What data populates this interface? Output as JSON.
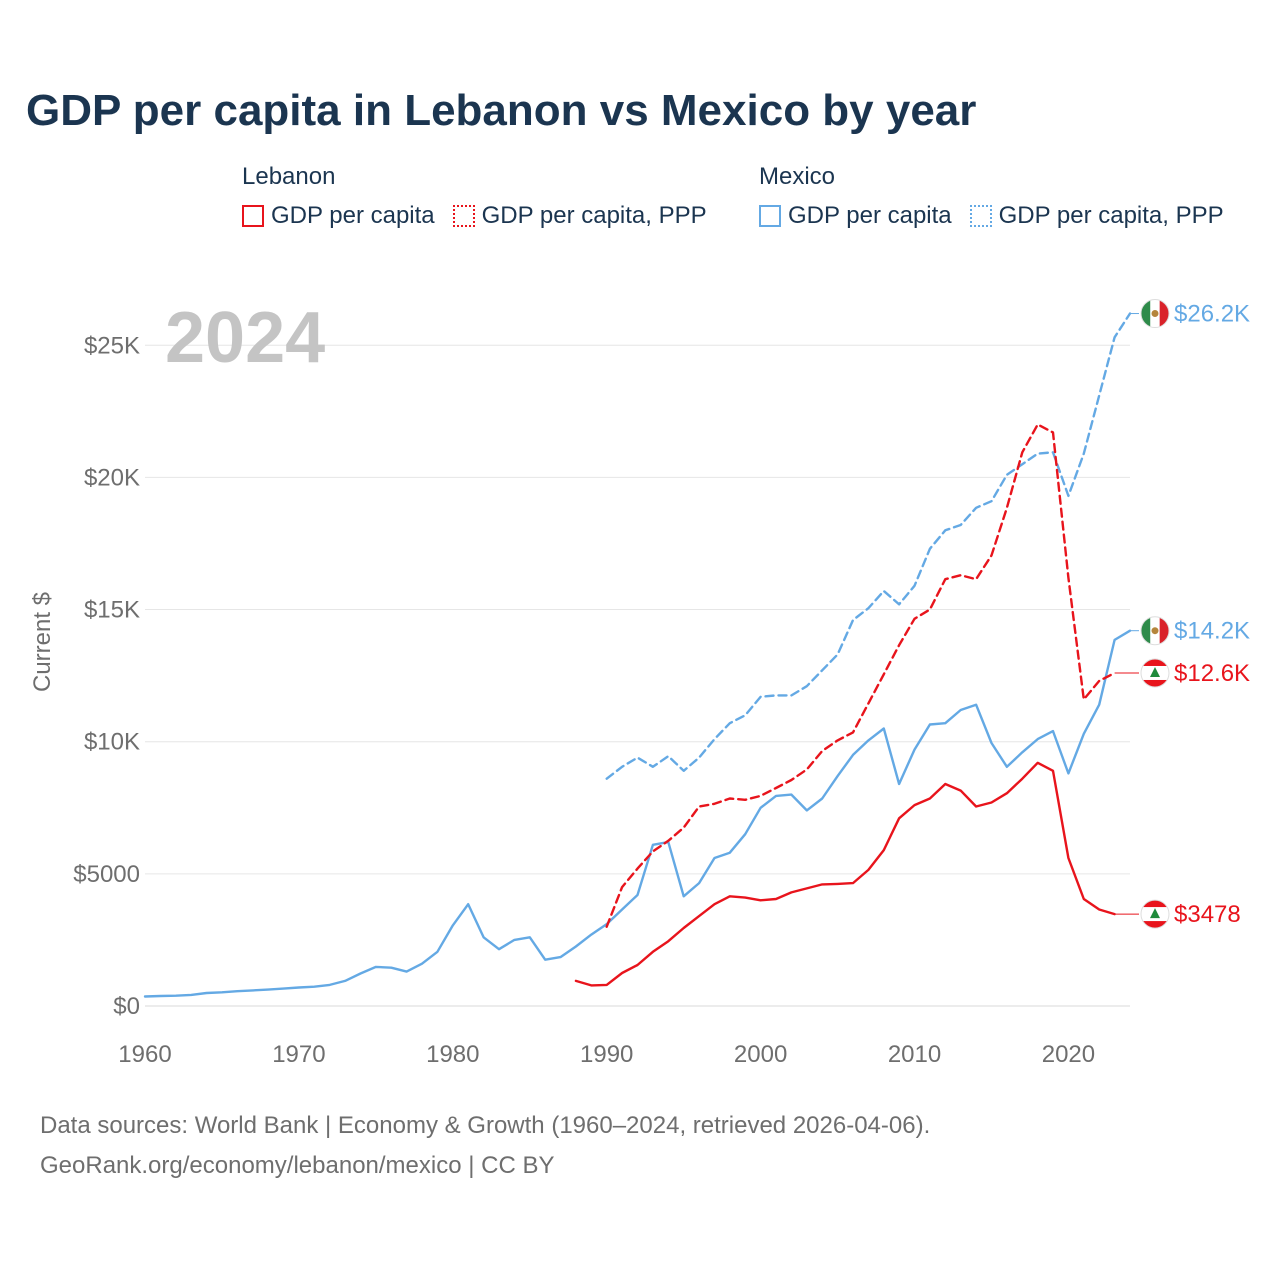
{
  "chart_data": {
    "type": "line",
    "title": "GDP per capita in Lebanon vs Mexico by year",
    "ylabel": "Current $",
    "xlabel": "",
    "xlim": [
      1960,
      2024
    ],
    "ylim": [
      0,
      27000
    ],
    "x_ticks": [
      1960,
      1970,
      1980,
      1990,
      2000,
      2010,
      2020
    ],
    "x_tick_labels": [
      "1960",
      "1970",
      "1980",
      "1990",
      "2000",
      "2010",
      "2020"
    ],
    "y_ticks": [
      0,
      5000,
      10000,
      15000,
      20000,
      25000
    ],
    "y_tick_labels": [
      "$0",
      "$5000",
      "$10K",
      "$15K",
      "$20K",
      "$25K"
    ],
    "year_watermark": "2024",
    "legend_groups": [
      {
        "name": "Lebanon",
        "items": [
          "GDP per capita",
          "GDP per capita, PPP"
        ]
      },
      {
        "name": "Mexico",
        "items": [
          "GDP per capita",
          "GDP per capita, PPP"
        ]
      }
    ],
    "series": [
      {
        "name": "Mexico GDP per capita",
        "country": "Mexico",
        "style": "solid",
        "color": "#64a9e4",
        "end_label": "$14.2K",
        "end_flag": "mexico",
        "x": [
          1960,
          1961,
          1962,
          1963,
          1964,
          1965,
          1966,
          1967,
          1968,
          1969,
          1970,
          1971,
          1972,
          1973,
          1974,
          1975,
          1976,
          1977,
          1978,
          1979,
          1980,
          1981,
          1982,
          1983,
          1984,
          1985,
          1986,
          1987,
          1988,
          1989,
          1990,
          1991,
          1992,
          1993,
          1994,
          1995,
          1996,
          1997,
          1998,
          1999,
          2000,
          2001,
          2002,
          2003,
          2004,
          2005,
          2006,
          2007,
          2008,
          2009,
          2010,
          2011,
          2012,
          2013,
          2014,
          2015,
          2016,
          2017,
          2018,
          2019,
          2020,
          2021,
          2022,
          2023,
          2024
        ],
        "values": [
          360,
          380,
          390,
          420,
          490,
          520,
          560,
          590,
          620,
          660,
          700,
          730,
          800,
          950,
          1230,
          1480,
          1450,
          1300,
          1600,
          2050,
          3050,
          3850,
          2600,
          2150,
          2500,
          2600,
          1750,
          1850,
          2250,
          2700,
          3100,
          3650,
          4200,
          6100,
          6200,
          4150,
          4650,
          5600,
          5800,
          6500,
          7500,
          7950,
          8000,
          7400,
          7850,
          8700,
          9500,
          10050,
          10500,
          8400,
          9700,
          10650,
          10700,
          11200,
          11400,
          9950,
          9050,
          9600,
          10100,
          10400,
          8800,
          10300,
          11400,
          13850,
          14200
        ]
      },
      {
        "name": "Mexico GDP per capita, PPP",
        "country": "Mexico",
        "style": "dotted",
        "color": "#64a9e4",
        "end_label": "$26.2K",
        "end_flag": "mexico",
        "x": [
          1990,
          1991,
          1992,
          1993,
          1994,
          1995,
          1996,
          1997,
          1998,
          1999,
          2000,
          2001,
          2002,
          2003,
          2004,
          2005,
          2006,
          2007,
          2008,
          2009,
          2010,
          2011,
          2012,
          2013,
          2014,
          2015,
          2016,
          2017,
          2018,
          2019,
          2020,
          2021,
          2022,
          2023,
          2024
        ],
        "values": [
          8600,
          9050,
          9400,
          9050,
          9450,
          8900,
          9400,
          10100,
          10700,
          11000,
          11700,
          11750,
          11750,
          12100,
          12700,
          13300,
          14600,
          15050,
          15700,
          15200,
          15900,
          17300,
          18000,
          18200,
          18850,
          19100,
          20100,
          20500,
          20900,
          20950,
          19300,
          20900,
          23100,
          25300,
          26200
        ]
      },
      {
        "name": "Lebanon GDP per capita",
        "country": "Lebanon",
        "style": "solid",
        "color": "#e8141c",
        "end_label": "$3478",
        "end_flag": "lebanon",
        "x": [
          1988,
          1989,
          1990,
          1991,
          1992,
          1993,
          1994,
          1995,
          1996,
          1997,
          1998,
          1999,
          2000,
          2001,
          2002,
          2003,
          2004,
          2005,
          2006,
          2007,
          2008,
          2009,
          2010,
          2011,
          2012,
          2013,
          2014,
          2015,
          2016,
          2017,
          2018,
          2019,
          2020,
          2021,
          2022,
          2023
        ],
        "values": [
          950,
          780,
          800,
          1250,
          1550,
          2050,
          2450,
          2950,
          3400,
          3850,
          4150,
          4100,
          4000,
          4050,
          4300,
          4450,
          4600,
          4620,
          4650,
          5150,
          5900,
          7100,
          7600,
          7850,
          8400,
          8150,
          7550,
          7700,
          8050,
          8600,
          9200,
          8900,
          5600,
          4050,
          3650,
          3478
        ]
      },
      {
        "name": "Lebanon GDP per capita, PPP",
        "country": "Lebanon",
        "style": "dotted",
        "color": "#e8141c",
        "end_label": "$12.6K",
        "end_flag": "lebanon",
        "x": [
          1990,
          1991,
          1992,
          1993,
          1994,
          1995,
          1996,
          1997,
          1998,
          1999,
          2000,
          2001,
          2002,
          2003,
          2004,
          2005,
          2006,
          2007,
          2008,
          2009,
          2010,
          2011,
          2012,
          2013,
          2014,
          2015,
          2016,
          2017,
          2018,
          2019,
          2020,
          2021,
          2022,
          2023
        ],
        "values": [
          3000,
          4500,
          5200,
          5850,
          6250,
          6750,
          7550,
          7650,
          7850,
          7800,
          7950,
          8250,
          8550,
          8950,
          9650,
          10050,
          10350,
          11450,
          12550,
          13650,
          14650,
          15000,
          16150,
          16300,
          16150,
          17050,
          18850,
          20950,
          22000,
          21700,
          16200,
          11600,
          12300,
          12600
        ]
      }
    ]
  },
  "footer": {
    "line1": "Data sources: World Bank | Economy & Growth (1960–2024, retrieved 2026-04-06).",
    "line2": "GeoRank.org/economy/lebanon/mexico | CC BY"
  },
  "colors": {
    "lebanon": "#e8141c",
    "mexico": "#64a9e4",
    "title": "#1b3550",
    "axis_text": "#6e6e6e",
    "grid": "#e6e6e6",
    "watermark": "#c4c4c4"
  }
}
